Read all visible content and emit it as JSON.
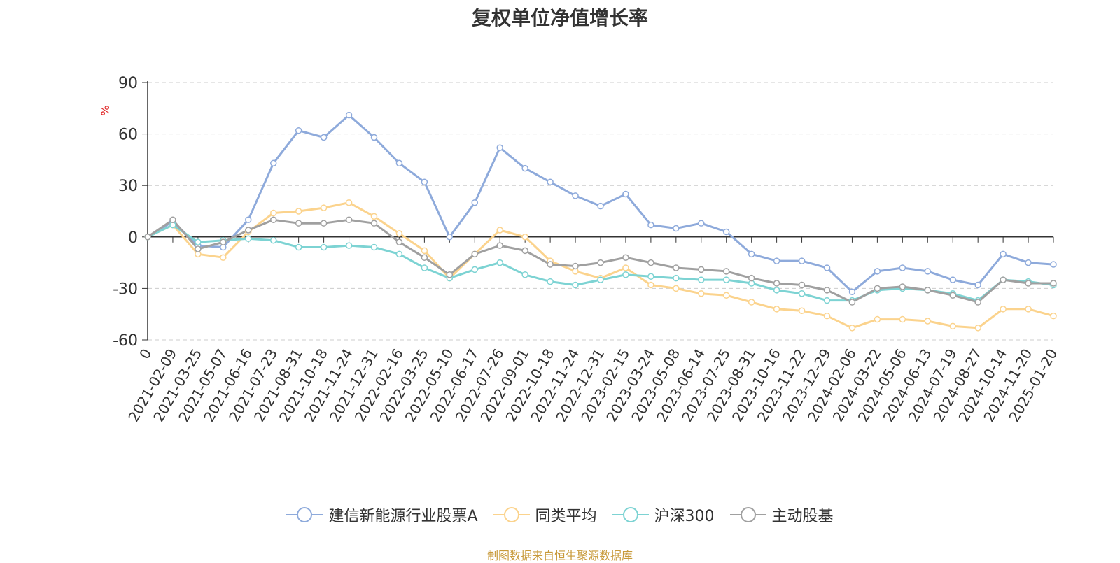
{
  "chart_data": {
    "type": "line",
    "title": "复权单位净值增长率",
    "ylabel": "%",
    "xlabel": "",
    "ylim": [
      -60,
      90
    ],
    "yticks": [
      -60,
      -30,
      0,
      30,
      60,
      90
    ],
    "grid": true,
    "legend_position": "bottom",
    "x": [
      "0",
      "2021-02-09",
      "2021-03-25",
      "2021-05-07",
      "2021-06-16",
      "2021-07-23",
      "2021-08-31",
      "2021-10-18",
      "2021-11-24",
      "2021-12-31",
      "2022-02-16",
      "2022-03-25",
      "2022-05-10",
      "2022-06-17",
      "2022-07-26",
      "2022-09-01",
      "2022-10-18",
      "2022-11-24",
      "2022-12-31",
      "2023-02-15",
      "2023-03-24",
      "2023-05-08",
      "2023-06-14",
      "2023-07-25",
      "2023-08-31",
      "2023-10-16",
      "2023-11-22",
      "2023-12-29",
      "2024-02-06",
      "2024-03-22",
      "2024-05-06",
      "2024-06-13",
      "2024-07-19",
      "2024-08-27",
      "2024-10-14",
      "2024-11-20",
      "2025-01-20"
    ],
    "series": [
      {
        "name": "建信新能源行业股票A",
        "color": "#8eaadb",
        "values": [
          0,
          9,
          -5,
          -6,
          10,
          43,
          62,
          58,
          71,
          58,
          43,
          32,
          0,
          20,
          52,
          40,
          32,
          24,
          18,
          25,
          7,
          5,
          8,
          3,
          -10,
          -14,
          -14,
          -18,
          -32,
          -20,
          -18,
          -20,
          -25,
          -28,
          -10,
          -15,
          -16
        ]
      },
      {
        "name": "同类平均",
        "color": "#fbd38d",
        "values": [
          0,
          7,
          -10,
          -12,
          3,
          14,
          15,
          17,
          20,
          12,
          2,
          -8,
          -24,
          -10,
          4,
          0,
          -14,
          -20,
          -24,
          -18,
          -28,
          -30,
          -33,
          -34,
          -38,
          -42,
          -43,
          -46,
          -53,
          -48,
          -48,
          -49,
          -52,
          -53,
          -42,
          -42,
          -46
        ]
      },
      {
        "name": "沪深300",
        "color": "#7dd3d3",
        "values": [
          0,
          7,
          -3,
          -2,
          -1,
          -2,
          -6,
          -6,
          -5,
          -6,
          -10,
          -18,
          -24,
          -19,
          -15,
          -22,
          -26,
          -28,
          -25,
          -22,
          -23,
          -24,
          -25,
          -25,
          -27,
          -31,
          -33,
          -37,
          -37,
          -31,
          -30,
          -31,
          -33,
          -37,
          -25,
          -26,
          -28
        ]
      },
      {
        "name": "主动股基",
        "color": "#a0a0a0",
        "values": [
          0,
          10,
          -7,
          -3,
          4,
          10,
          8,
          8,
          10,
          8,
          -3,
          -12,
          -22,
          -10,
          -5,
          -8,
          -16,
          -17,
          -15,
          -12,
          -15,
          -18,
          -19,
          -20,
          -24,
          -27,
          -28,
          -31,
          -38,
          -30,
          -29,
          -31,
          -34,
          -38,
          -25,
          -27,
          -27
        ]
      }
    ]
  },
  "legend_labels": [
    "建信新能源行业股票A",
    "同类平均",
    "沪深300",
    "主动股基"
  ],
  "source_note": "制图数据来自恒生聚源数据库"
}
